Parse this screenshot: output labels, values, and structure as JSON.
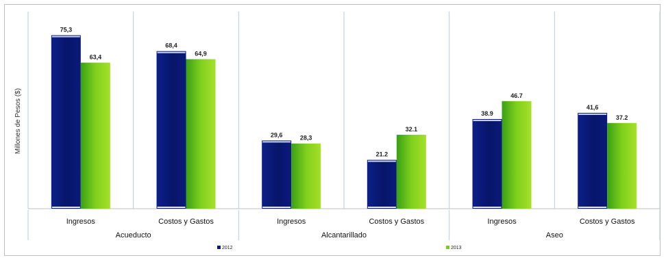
{
  "chart_data": {
    "type": "bar",
    "title": "",
    "ylabel": "Millones de Pesos ($)",
    "xlabel": "",
    "ylim": [
      0,
      80
    ],
    "grid": false,
    "legend_position": "bottom",
    "groups": [
      "Acueducto",
      "Alcantarillado",
      "Aseo"
    ],
    "categories": [
      "Ingresos",
      "Costos y Gastos",
      "Ingresos",
      "Costos y Gastos",
      "Ingresos",
      "Costos y Gastos"
    ],
    "category_group": [
      0,
      0,
      1,
      1,
      2,
      2
    ],
    "series": [
      {
        "name": "2012",
        "values": [
          75.3,
          68.4,
          29.6,
          21.2,
          38.9,
          41.6
        ],
        "labels": [
          "75,3",
          "68,4",
          "29,6",
          "21.2",
          "38.9",
          "41,6"
        ],
        "color": "#0a1a7a"
      },
      {
        "name": "2013",
        "values": [
          63.4,
          64.9,
          28.3,
          32.1,
          46.7,
          37.2
        ],
        "labels": [
          "63,4",
          "64,9",
          "28,3",
          "32.1",
          "46.7",
          "37.2"
        ],
        "color": "#7ccc1e"
      }
    ]
  }
}
